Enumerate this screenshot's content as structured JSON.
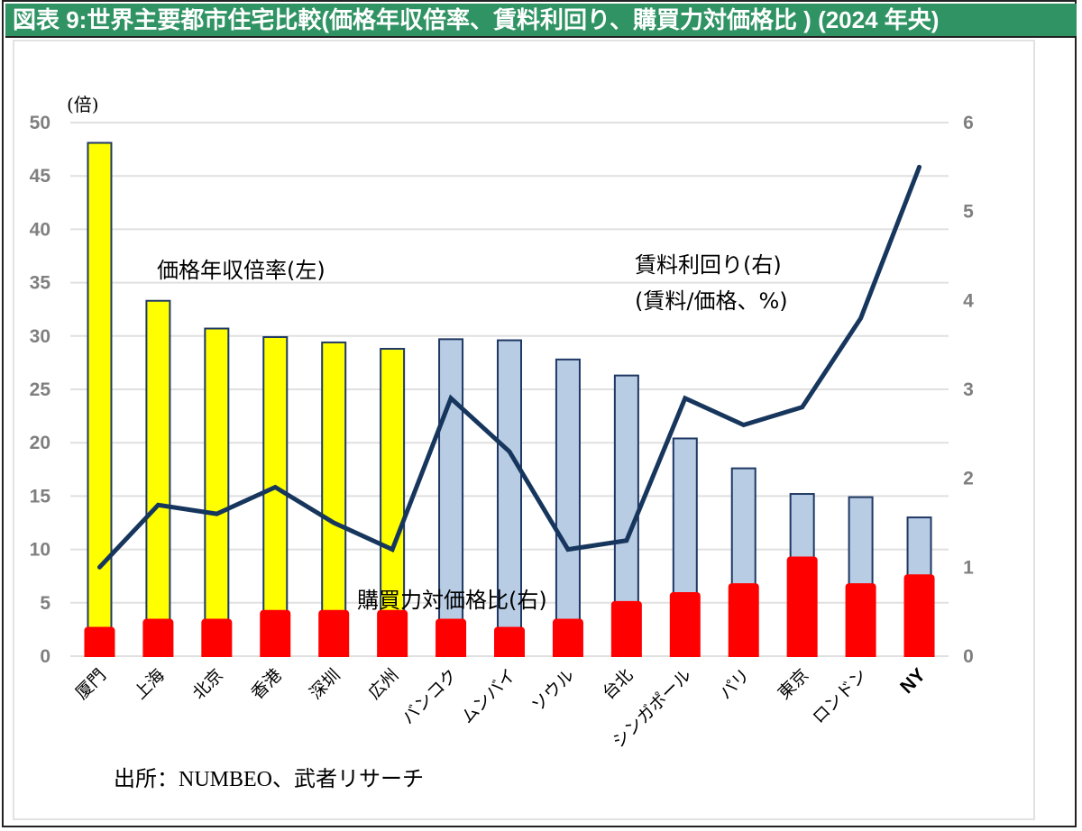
{
  "header": {
    "title": "図表 9:世界主要都市住宅比較(価格年収倍率、賃料利回り、購買力対価格比 ) (2024 年央)"
  },
  "colors": {
    "title_bar": "#2f9363",
    "bar_china": "#ffff00",
    "bar_other": "#b8cce4",
    "bar_outline": "#1f3864",
    "purchasing_power": "#ff0000",
    "rental_yield_line": "#17365d",
    "gridline": "#e0e0e0",
    "tick_text": "#7f7f7f"
  },
  "chart_data": {
    "type": "bar",
    "title": "図表 9:世界主要都市住宅比較(価格年収倍率、賃料利回り、購買力対価格比 ) (2024 年央)",
    "categories": [
      "厦門",
      "上海",
      "北京",
      "香港",
      "深圳",
      "広州",
      "バンコク",
      "ムンバイ",
      "ソウル",
      "台北",
      "シンガポール",
      "パリ",
      "東京",
      "ロンドン",
      "NY"
    ],
    "left_axis": {
      "unit_label": "(倍)",
      "ylim": [
        0,
        50
      ],
      "ticks": [
        "0",
        "5",
        "10",
        "15",
        "20",
        "25",
        "30",
        "35",
        "40",
        "45",
        "50"
      ]
    },
    "right_axis": {
      "ylim": [
        0,
        6
      ],
      "ticks": [
        "0",
        "1",
        "2",
        "3",
        "4",
        "5",
        "6"
      ]
    },
    "grid": true,
    "series": [
      {
        "name": "価格年収倍率(左)",
        "type": "bar",
        "axis": "left",
        "values": [
          48.1,
          33.3,
          30.7,
          29.9,
          29.4,
          28.8,
          29.7,
          29.6,
          27.8,
          26.3,
          20.4,
          17.6,
          15.2,
          14.9,
          13.0
        ]
      },
      {
        "name": "購買力対価格比(右)",
        "type": "bar",
        "axis": "right",
        "values": [
          0.33,
          0.42,
          0.42,
          0.52,
          0.52,
          0.52,
          0.42,
          0.33,
          0.42,
          0.62,
          0.72,
          0.82,
          1.12,
          0.82,
          0.92
        ]
      },
      {
        "name": "賃料利回り(右)",
        "name_line2": "(賃料/価格、%)",
        "type": "line",
        "axis": "right",
        "values": [
          1.0,
          1.7,
          1.6,
          1.9,
          1.5,
          1.2,
          2.9,
          2.3,
          1.2,
          1.3,
          2.9,
          2.6,
          2.8,
          3.8,
          5.5
        ]
      }
    ],
    "bold_categories": [
      "NY"
    ],
    "china_city_count": 6,
    "source": "出所：NUMBEO、武者リサーチ"
  }
}
